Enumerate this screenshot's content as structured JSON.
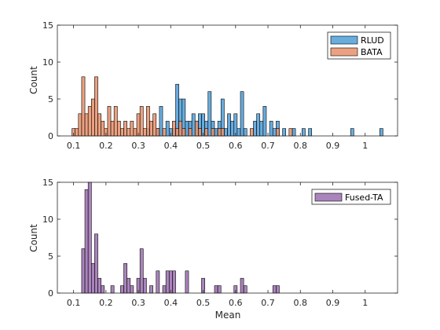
{
  "chart_data": [
    {
      "type": "bar",
      "xlim": [
        0.05,
        1.1
      ],
      "ylim": [
        0,
        15
      ],
      "xticks": [
        "0.1",
        "0.2",
        "0.3",
        "0.4",
        "0.5",
        "0.6",
        "0.7",
        "0.8",
        "0.9",
        "1"
      ],
      "yticks": [
        "0",
        "5",
        "10",
        "15"
      ],
      "xlabel": "",
      "ylabel": "Count",
      "bin_width": 0.01,
      "legend_position": "top-right",
      "series": [
        {
          "name": "RLUD",
          "color": "#4f9ed8",
          "bins": [
            [
              0.33,
              1
            ],
            [
              0.36,
              1
            ],
            [
              0.37,
              4
            ],
            [
              0.39,
              2
            ],
            [
              0.4,
              1
            ],
            [
              0.41,
              1
            ],
            [
              0.42,
              7
            ],
            [
              0.43,
              5
            ],
            [
              0.44,
              5
            ],
            [
              0.45,
              2
            ],
            [
              0.46,
              2
            ],
            [
              0.47,
              3
            ],
            [
              0.48,
              2
            ],
            [
              0.49,
              3
            ],
            [
              0.5,
              3
            ],
            [
              0.51,
              2
            ],
            [
              0.52,
              6
            ],
            [
              0.53,
              2
            ],
            [
              0.54,
              1
            ],
            [
              0.55,
              2
            ],
            [
              0.56,
              5
            ],
            [
              0.57,
              1
            ],
            [
              0.58,
              3
            ],
            [
              0.59,
              2
            ],
            [
              0.6,
              3
            ],
            [
              0.61,
              1
            ],
            [
              0.62,
              6
            ],
            [
              0.63,
              1
            ],
            [
              0.66,
              2
            ],
            [
              0.67,
              3
            ],
            [
              0.68,
              2
            ],
            [
              0.69,
              4
            ],
            [
              0.71,
              2
            ],
            [
              0.72,
              1
            ],
            [
              0.73,
              2
            ],
            [
              0.75,
              1
            ],
            [
              0.78,
              1
            ],
            [
              0.81,
              1
            ],
            [
              0.83,
              1
            ],
            [
              0.96,
              1
            ],
            [
              1.05,
              1
            ]
          ]
        },
        {
          "name": "BATA",
          "color": "#e8906a",
          "bins": [
            [
              0.1,
              1
            ],
            [
              0.11,
              1
            ],
            [
              0.12,
              3
            ],
            [
              0.13,
              8
            ],
            [
              0.14,
              3
            ],
            [
              0.15,
              4
            ],
            [
              0.16,
              5
            ],
            [
              0.17,
              8
            ],
            [
              0.18,
              3
            ],
            [
              0.19,
              2
            ],
            [
              0.2,
              1
            ],
            [
              0.21,
              4
            ],
            [
              0.22,
              2
            ],
            [
              0.23,
              4
            ],
            [
              0.24,
              2
            ],
            [
              0.25,
              1
            ],
            [
              0.26,
              2
            ],
            [
              0.27,
              1
            ],
            [
              0.28,
              2
            ],
            [
              0.29,
              1
            ],
            [
              0.3,
              3
            ],
            [
              0.31,
              4
            ],
            [
              0.32,
              1
            ],
            [
              0.33,
              4
            ],
            [
              0.34,
              2
            ],
            [
              0.35,
              3
            ],
            [
              0.36,
              1
            ],
            [
              0.38,
              1
            ],
            [
              0.41,
              2
            ],
            [
              0.42,
              1
            ],
            [
              0.43,
              2
            ],
            [
              0.44,
              1
            ],
            [
              0.46,
              1
            ],
            [
              0.48,
              2
            ],
            [
              0.49,
              1
            ],
            [
              0.51,
              1
            ],
            [
              0.53,
              1
            ],
            [
              0.55,
              1
            ],
            [
              0.56,
              1
            ],
            [
              0.65,
              1
            ],
            [
              0.73,
              1
            ],
            [
              0.77,
              1
            ]
          ]
        }
      ]
    },
    {
      "type": "bar",
      "xlim": [
        0.05,
        1.1
      ],
      "ylim": [
        0,
        15
      ],
      "xticks": [
        "0.1",
        "0.2",
        "0.3",
        "0.4",
        "0.5",
        "0.6",
        "0.7",
        "0.8",
        "0.9",
        "1"
      ],
      "yticks": [
        "0",
        "5",
        "10",
        "15"
      ],
      "xlabel": "Mean",
      "ylabel": "Count",
      "bin_width": 0.01,
      "legend_position": "top-right",
      "series": [
        {
          "name": "Fused-TA",
          "color": "#9b6fb0",
          "bins": [
            [
              0.13,
              6
            ],
            [
              0.14,
              14
            ],
            [
              0.15,
              15
            ],
            [
              0.16,
              4
            ],
            [
              0.17,
              8
            ],
            [
              0.18,
              2
            ],
            [
              0.19,
              1
            ],
            [
              0.22,
              1
            ],
            [
              0.25,
              1
            ],
            [
              0.26,
              4
            ],
            [
              0.27,
              2
            ],
            [
              0.28,
              1
            ],
            [
              0.3,
              2
            ],
            [
              0.31,
              6
            ],
            [
              0.32,
              2
            ],
            [
              0.34,
              1
            ],
            [
              0.36,
              3
            ],
            [
              0.38,
              1
            ],
            [
              0.39,
              3
            ],
            [
              0.4,
              3
            ],
            [
              0.41,
              3
            ],
            [
              0.45,
              3
            ],
            [
              0.5,
              2
            ],
            [
              0.54,
              1
            ],
            [
              0.55,
              1
            ],
            [
              0.6,
              1
            ],
            [
              0.62,
              2
            ],
            [
              0.63,
              1
            ],
            [
              0.72,
              1
            ],
            [
              0.73,
              1
            ]
          ]
        }
      ]
    }
  ]
}
